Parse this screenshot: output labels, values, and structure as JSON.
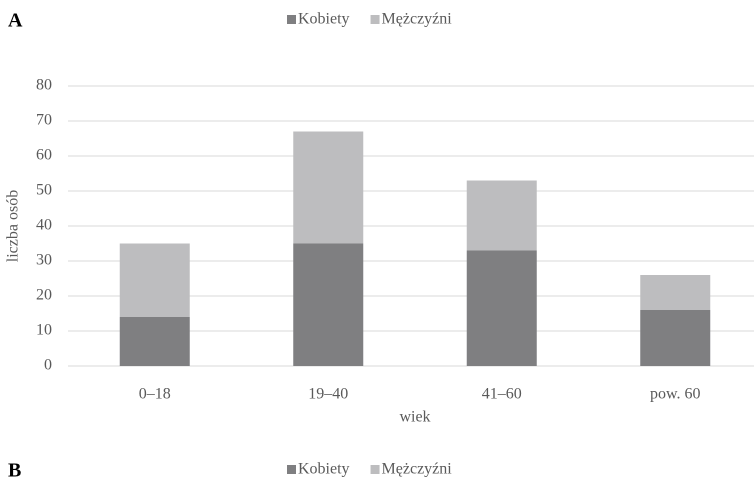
{
  "chart_data": [
    {
      "type": "bar",
      "stacked": true,
      "panel": "A",
      "categories": [
        "0–18",
        "19–40",
        "41–60",
        "pow. 60"
      ],
      "series": [
        {
          "name": "Kobiety",
          "color": "#7f7f81",
          "values": [
            14,
            35,
            33,
            16
          ]
        },
        {
          "name": "Mężczyźni",
          "color": "#bdbdbf",
          "values": [
            21,
            32,
            20,
            10
          ]
        }
      ],
      "xlabel": "wiek",
      "ylabel": "liczba osób",
      "ylim": [
        0,
        80
      ],
      "yticks": [
        0,
        10,
        20,
        30,
        40,
        50,
        60,
        70,
        80
      ],
      "grid": true,
      "legend": "top"
    },
    {
      "type": "bar",
      "panel": "B",
      "series": [
        {
          "name": "Kobiety",
          "color": "#7f7f81"
        },
        {
          "name": "Mężczyźni",
          "color": "#bdbdbf"
        }
      ],
      "legend": "top"
    }
  ]
}
